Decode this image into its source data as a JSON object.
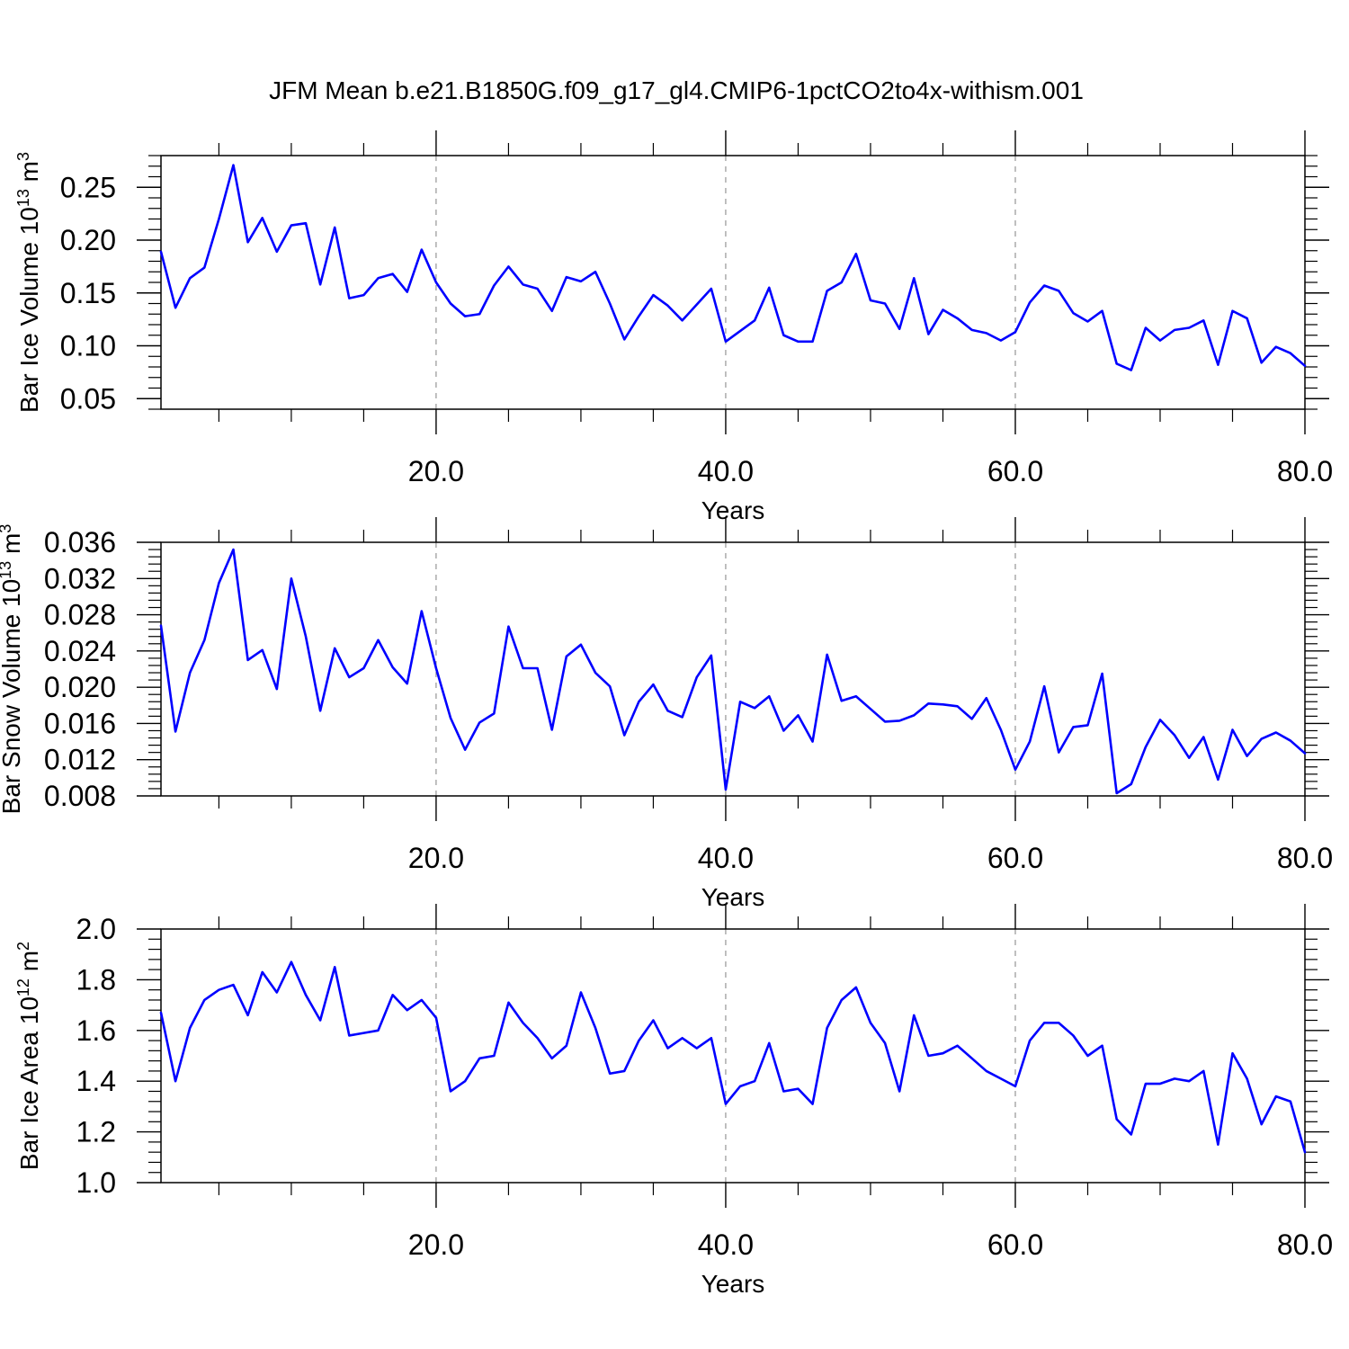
{
  "title": "JFM Mean b.e21.B1850G.f09_g17_gl4.CMIP6-1pctCO2to4x-withism.001",
  "colors": {
    "line": "#0000ff",
    "axis": "#000000",
    "grid": "#808080"
  },
  "chart_data": [
    {
      "type": "line",
      "xlabel": "Years",
      "ylabel": "Bar Ice Volume 10",
      "ylabel_exp": "13",
      "ylabel_unit": " m",
      "ylabel_unit_exp": "3",
      "xlim": [
        1,
        80
      ],
      "ylim": [
        0.04,
        0.28
      ],
      "xticks": [
        20,
        40,
        60,
        80
      ],
      "xtick_labels": [
        "20.0",
        "40.0",
        "60.0",
        "80.0"
      ],
      "yticks": [
        0.05,
        0.1,
        0.15,
        0.2,
        0.25
      ],
      "ytick_labels": [
        "0.05",
        "0.10",
        "0.15",
        "0.20",
        "0.25"
      ],
      "grid": "vertical dashed at major x ticks",
      "series": [
        {
          "x": [
            1,
            2,
            3,
            4,
            5,
            6,
            7,
            8,
            9,
            10,
            11,
            12,
            13,
            14,
            15,
            16,
            17,
            18,
            19,
            20,
            21,
            22,
            23,
            24,
            25,
            26,
            27,
            28,
            29,
            30,
            31,
            32,
            33,
            34,
            35,
            36,
            37,
            38,
            39,
            40,
            41,
            42,
            43,
            44,
            45,
            46,
            47,
            48,
            49,
            50,
            51,
            52,
            53,
            54,
            55,
            56,
            57,
            58,
            59,
            60,
            61,
            62,
            63,
            64,
            65,
            66,
            67,
            68,
            69,
            70,
            71,
            72,
            73,
            74,
            75,
            76,
            77,
            78,
            79,
            80
          ],
          "values": [
            0.189,
            0.136,
            0.164,
            0.174,
            0.22,
            0.271,
            0.198,
            0.221,
            0.189,
            0.214,
            0.216,
            0.158,
            0.212,
            0.145,
            0.148,
            0.164,
            0.168,
            0.151,
            0.191,
            0.16,
            0.14,
            0.128,
            0.13,
            0.157,
            0.175,
            0.158,
            0.154,
            0.133,
            0.165,
            0.161,
            0.17,
            0.14,
            0.106,
            0.128,
            0.148,
            0.138,
            0.124,
            0.139,
            0.154,
            0.104,
            0.114,
            0.124,
            0.155,
            0.11,
            0.104,
            0.104,
            0.152,
            0.16,
            0.187,
            0.143,
            0.14,
            0.116,
            0.164,
            0.111,
            0.134,
            0.126,
            0.115,
            0.112,
            0.105,
            0.113,
            0.141,
            0.157,
            0.152,
            0.131,
            0.123,
            0.133,
            0.083,
            0.077,
            0.117,
            0.105,
            0.115,
            0.117,
            0.124,
            0.082,
            0.133,
            0.126,
            0.084,
            0.099,
            0.093,
            0.081
          ]
        }
      ]
    },
    {
      "type": "line",
      "xlabel": "Years",
      "ylabel": "Bar Snow Volume 10",
      "ylabel_exp": "13",
      "ylabel_unit": " m",
      "ylabel_unit_exp": "3",
      "xlim": [
        1,
        80
      ],
      "ylim": [
        0.008,
        0.036
      ],
      "xticks": [
        20,
        40,
        60,
        80
      ],
      "xtick_labels": [
        "20.0",
        "40.0",
        "60.0",
        "80.0"
      ],
      "yticks": [
        0.008,
        0.012,
        0.016,
        0.02,
        0.024,
        0.028,
        0.032,
        0.036
      ],
      "ytick_labels": [
        "0.008",
        "0.012",
        "0.016",
        "0.020",
        "0.024",
        "0.028",
        "0.032",
        "0.036"
      ],
      "grid": "vertical dashed at major x ticks",
      "series": [
        {
          "x": [
            1,
            2,
            3,
            4,
            5,
            6,
            7,
            8,
            9,
            10,
            11,
            12,
            13,
            14,
            15,
            16,
            17,
            18,
            19,
            20,
            21,
            22,
            23,
            24,
            25,
            26,
            27,
            28,
            29,
            30,
            31,
            32,
            33,
            34,
            35,
            36,
            37,
            38,
            39,
            40,
            41,
            42,
            43,
            44,
            45,
            46,
            47,
            48,
            49,
            50,
            51,
            52,
            53,
            54,
            55,
            56,
            57,
            58,
            59,
            60,
            61,
            62,
            63,
            64,
            65,
            66,
            67,
            68,
            69,
            70,
            71,
            72,
            73,
            74,
            75,
            76,
            77,
            78,
            79,
            80
          ],
          "values": [
            0.0268,
            0.0151,
            0.0216,
            0.0252,
            0.0315,
            0.0352,
            0.023,
            0.0241,
            0.0198,
            0.032,
            0.0256,
            0.0174,
            0.0243,
            0.0211,
            0.0221,
            0.0252,
            0.0222,
            0.0204,
            0.0284,
            0.0221,
            0.0166,
            0.0131,
            0.0161,
            0.0171,
            0.0267,
            0.0221,
            0.0221,
            0.0153,
            0.0234,
            0.0247,
            0.0216,
            0.0201,
            0.0147,
            0.0184,
            0.0203,
            0.0174,
            0.0167,
            0.0211,
            0.0235,
            0.0087,
            0.0184,
            0.0177,
            0.019,
            0.0152,
            0.0169,
            0.014,
            0.0236,
            0.0185,
            0.019,
            0.0176,
            0.0162,
            0.0163,
            0.0169,
            0.0182,
            0.0181,
            0.0179,
            0.0165,
            0.0188,
            0.0153,
            0.0109,
            0.014,
            0.0201,
            0.0128,
            0.0156,
            0.0158,
            0.0215,
            0.0083,
            0.0093,
            0.0134,
            0.0164,
            0.0147,
            0.0122,
            0.0145,
            0.0098,
            0.0153,
            0.0124,
            0.0143,
            0.015,
            0.0141,
            0.0127
          ]
        }
      ]
    },
    {
      "type": "line",
      "xlabel": "Years",
      "ylabel": "Bar Ice Area 10",
      "ylabel_exp": "12",
      "ylabel_unit": " m",
      "ylabel_unit_exp": "2",
      "xlim": [
        1,
        80
      ],
      "ylim": [
        1.0,
        2.0
      ],
      "xticks": [
        20,
        40,
        60,
        80
      ],
      "xtick_labels": [
        "20.0",
        "40.0",
        "60.0",
        "80.0"
      ],
      "yticks": [
        1.0,
        1.2,
        1.4,
        1.6,
        1.8,
        2.0
      ],
      "ytick_labels": [
        "1.0",
        "1.2",
        "1.4",
        "1.6",
        "1.8",
        "2.0"
      ],
      "grid": "vertical dashed at major x ticks",
      "series": [
        {
          "x": [
            1,
            2,
            3,
            4,
            5,
            6,
            7,
            8,
            9,
            10,
            11,
            12,
            13,
            14,
            15,
            16,
            17,
            18,
            19,
            20,
            21,
            22,
            23,
            24,
            25,
            26,
            27,
            28,
            29,
            30,
            31,
            32,
            33,
            34,
            35,
            36,
            37,
            38,
            39,
            40,
            41,
            42,
            43,
            44,
            45,
            46,
            47,
            48,
            49,
            50,
            51,
            52,
            53,
            54,
            55,
            56,
            57,
            58,
            59,
            60,
            61,
            62,
            63,
            64,
            65,
            66,
            67,
            68,
            69,
            70,
            71,
            72,
            73,
            74,
            75,
            76,
            77,
            78,
            79,
            80
          ],
          "values": [
            1.67,
            1.4,
            1.61,
            1.72,
            1.76,
            1.78,
            1.66,
            1.83,
            1.75,
            1.87,
            1.74,
            1.64,
            1.85,
            1.58,
            1.59,
            1.6,
            1.74,
            1.68,
            1.72,
            1.65,
            1.36,
            1.4,
            1.49,
            1.5,
            1.71,
            1.63,
            1.57,
            1.49,
            1.54,
            1.75,
            1.61,
            1.43,
            1.44,
            1.56,
            1.64,
            1.53,
            1.57,
            1.53,
            1.57,
            1.31,
            1.38,
            1.4,
            1.55,
            1.36,
            1.37,
            1.31,
            1.61,
            1.72,
            1.77,
            1.63,
            1.55,
            1.36,
            1.66,
            1.5,
            1.51,
            1.54,
            1.49,
            1.44,
            1.41,
            1.38,
            1.56,
            1.63,
            1.63,
            1.58,
            1.5,
            1.54,
            1.25,
            1.19,
            1.39,
            1.39,
            1.41,
            1.4,
            1.44,
            1.15,
            1.51,
            1.41,
            1.23,
            1.34,
            1.32,
            1.12
          ]
        }
      ]
    }
  ]
}
